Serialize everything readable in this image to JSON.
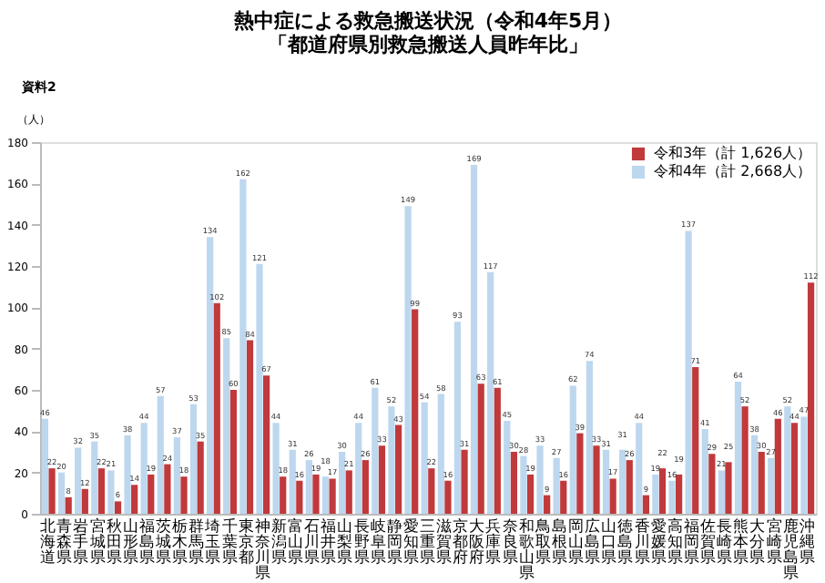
{
  "chart_data": {
    "type": "bar",
    "title": "熱中症による救急搬送状況（令和4年5月）",
    "subtitle": "「都道府県別救急搬送人員昨年比」",
    "ylabel": "（人）",
    "annotations": [
      "資料2"
    ],
    "categories": [
      "北海道",
      "青森県",
      "岩手県",
      "宮城県",
      "秋田県",
      "山形県",
      "福島県",
      "茨城県",
      "栃木県",
      "群馬県",
      "埼玉県",
      "千葉県",
      "東京都",
      "神奈川県",
      "新潟県",
      "富山県",
      "石川県",
      "福井県",
      "山梨県",
      "長野県",
      "岐阜県",
      "静岡県",
      "愛知県",
      "三重県",
      "滋賀県",
      "京都府",
      "大阪府",
      "兵庫県",
      "奈良県",
      "和歌山県",
      "鳥取県",
      "島根県",
      "岡山県",
      "広島県",
      "山口県",
      "徳島県",
      "香川県",
      "愛媛県",
      "高知県",
      "福岡県",
      "佐賀県",
      "長崎県",
      "熊本県",
      "大分県",
      "宮崎県",
      "鹿児島県",
      "沖縄県"
    ],
    "series": [
      {
        "name": "令和3年（計 1,626人）",
        "color": "#c0393b",
        "values": [
          22,
          8,
          12,
          22,
          6,
          14,
          19,
          24,
          18,
          35,
          102,
          60,
          84,
          67,
          18,
          16,
          19,
          17,
          21,
          26,
          33,
          43,
          99,
          22,
          16,
          31,
          63,
          61,
          30,
          19,
          9,
          16,
          39,
          33,
          17,
          26,
          9,
          22,
          19,
          71,
          29,
          25,
          52,
          30,
          46,
          44,
          112
        ]
      },
      {
        "name": "令和4年（計 2,668人）",
        "color": "#bdd7ee",
        "values": [
          46,
          20,
          32,
          35,
          21,
          38,
          44,
          57,
          37,
          53,
          134,
          85,
          162,
          121,
          44,
          31,
          26,
          18,
          30,
          44,
          61,
          52,
          149,
          54,
          58,
          93,
          169,
          117,
          45,
          28,
          33,
          27,
          62,
          74,
          31,
          31,
          44,
          19,
          16,
          137,
          41,
          21,
          64,
          38,
          27,
          52,
          47
        ]
      }
    ],
    "ylim": [
      0,
      180
    ],
    "yticks": [
      0,
      20,
      40,
      60,
      80,
      100,
      120,
      140,
      160,
      180
    ],
    "grid": false,
    "legend": "top right",
    "data_labels": true
  }
}
